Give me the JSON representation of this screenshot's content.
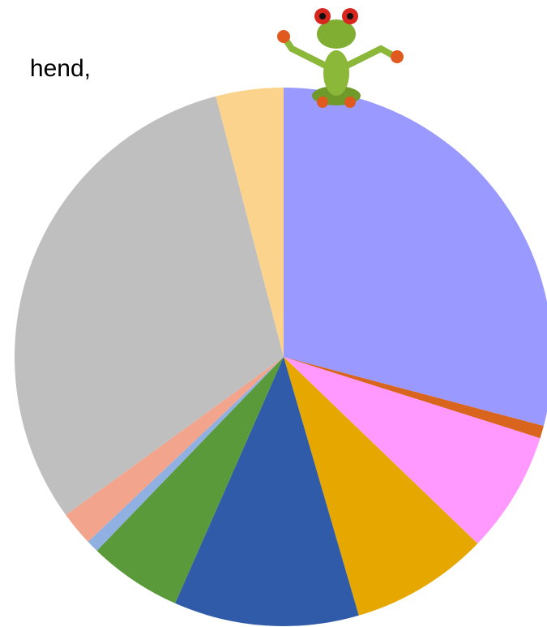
{
  "text": "hend,",
  "chart_data": {
    "type": "pie",
    "values": [
      29.1,
      0.75,
      7.3,
      8.3,
      11.1,
      5.6,
      0.75,
      2.05,
      30.9,
      4.05
    ],
    "colors": [
      "#9999ff",
      "#d9641e",
      "#ff99ff",
      "#e6a800",
      "#2f5ba8",
      "#5a9a3a",
      "#8fb0e0",
      "#f2a58c",
      "#bfbfbf",
      "#fcd38c"
    ]
  }
}
